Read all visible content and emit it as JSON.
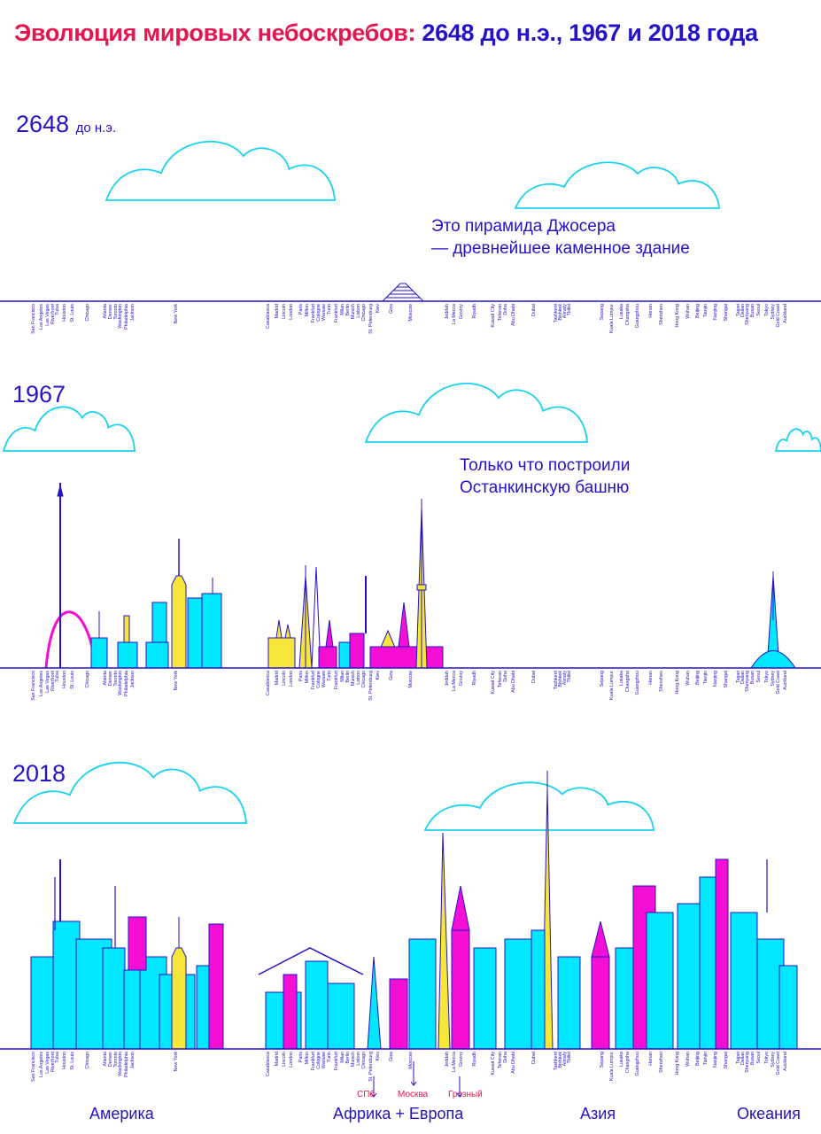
{
  "title": {
    "part1": "Эволюция мировых небоскребов:",
    "part2": "2648 до н.э., 1967 и 2018 года"
  },
  "eras": [
    {
      "year": "2648",
      "suffix": "до н.э."
    },
    {
      "year": "1967",
      "suffix": ""
    },
    {
      "year": "2018",
      "suffix": ""
    }
  ],
  "notes": {
    "pyramid": [
      "Это пирамида Джосера",
      "— древнейшее каменное здание"
    ],
    "ostankino": [
      "Только что построили",
      "Останкинскую башню"
    ]
  },
  "cities": [
    "San Francisco",
    "Los Angeles",
    "Las Vegas",
    "Riverfront",
    "Tulsa",
    "Houston",
    "St. Louis",
    "Chicago",
    "Atlanta",
    "Denver",
    "Toronto",
    "Washington",
    "Philadelphia",
    "Jackson",
    "New York",
    "Casablanca",
    "Madrid",
    "Lincoln",
    "London",
    "Paris",
    "Milton",
    "Frankfurt",
    "Cologne",
    "Warsaw",
    "Turin",
    "Frankfurt",
    "Milan",
    "Berlin",
    "Munich",
    "Lisbon",
    "Chicago",
    "St. Petersburg",
    "Kiev",
    "Giza",
    "Moscow",
    "Jeddah",
    "La Mecca",
    "Grozny",
    "Riyadh",
    "Kuwait City",
    "Teheran",
    "Doha",
    "Abu Dhabi",
    "Dubai",
    "Tashkent",
    "Bishkek",
    "Almaty",
    "Tbilisi",
    "Sepang",
    "Kuala Lumpur",
    "Lusaka",
    "Changsha",
    "Guangzhou",
    "Henan",
    "Shenzhen",
    "Hong Kong",
    "Wuhan",
    "Beijing",
    "Tianjin",
    "Nanjing",
    "Shangai",
    "Taipei",
    "Dalian",
    "Shenyang",
    "Busan",
    "Seoul",
    "Tokyo",
    "Sydney",
    "Gold Coast",
    "Auckland"
  ],
  "annotations": {
    "spb": "СПб",
    "moscow": "Москва",
    "grozny": "Грозный"
  },
  "regions": [
    "Америка",
    "Африка + Европа",
    "Азия",
    "Океания"
  ],
  "colors": {
    "blue": "#2413c9",
    "red": "#e4174f",
    "cyan": "#00e7ff",
    "magenta": "#f50fd5",
    "yellow": "#f6e639",
    "cloud": "#19d3ee"
  }
}
